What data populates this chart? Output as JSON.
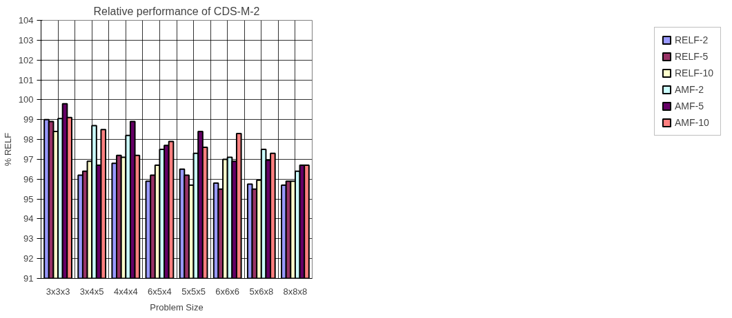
{
  "chart_data": {
    "type": "bar",
    "title": "Relative performance of CDS-M-2",
    "xlabel": "Problem Size",
    "ylabel": "% RELF",
    "categories": [
      "3x3x3",
      "3x4x5",
      "4x4x4",
      "6x5x4",
      "5x5x5",
      "6x6x6",
      "5x6x8",
      "8x8x8"
    ],
    "series": [
      {
        "name": "RELF-2",
        "color": "#9999ff",
        "values": [
          99.0,
          96.2,
          96.8,
          95.9,
          96.5,
          95.8,
          95.75,
          95.7
        ]
      },
      {
        "name": "RELF-5",
        "color": "#993366",
        "values": [
          98.9,
          96.4,
          97.2,
          96.2,
          96.2,
          95.5,
          95.5,
          95.9
        ]
      },
      {
        "name": "RELF-10",
        "color": "#ffffcc",
        "values": [
          98.4,
          96.9,
          97.1,
          96.7,
          95.7,
          97.0,
          95.95,
          95.9
        ]
      },
      {
        "name": "AMF-2",
        "color": "#ccffff",
        "values": [
          99.05,
          98.7,
          98.2,
          97.5,
          97.3,
          97.1,
          97.5,
          96.4
        ]
      },
      {
        "name": "AMF-5",
        "color": "#660066",
        "values": [
          99.8,
          96.7,
          98.9,
          97.7,
          98.4,
          96.9,
          96.95,
          96.7
        ]
      },
      {
        "name": "AMF-10",
        "color": "#ff8080",
        "values": [
          99.1,
          98.5,
          97.2,
          97.9,
          97.6,
          98.3,
          97.3,
          96.7
        ]
      }
    ],
    "ylim": [
      91,
      104
    ],
    "yticks": [
      91,
      92,
      93,
      94,
      95,
      96,
      97,
      98,
      99,
      100,
      101,
      102,
      103,
      104
    ],
    "grid": true,
    "legend": "right"
  }
}
